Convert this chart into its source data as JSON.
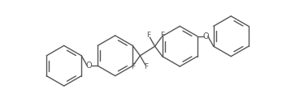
{
  "bg_color": "#ffffff",
  "line_color": "#555555",
  "line_width": 1.0,
  "font_size": 6.5,
  "label_color": "#555555",
  "figsize": [
    3.63,
    1.26
  ],
  "dpi": 100,
  "xlim": [
    -9.5,
    9.5
  ],
  "ylim": [
    -3.8,
    3.8
  ]
}
